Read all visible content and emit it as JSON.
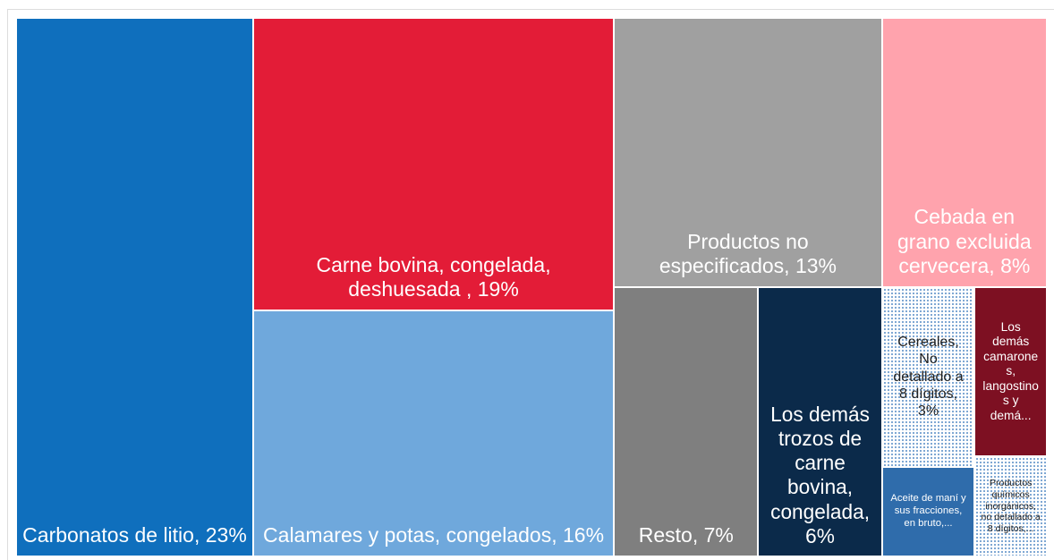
{
  "chart_data": {
    "type": "treemap",
    "items": [
      {
        "label": "Carbonatos de litio, 23%",
        "value": 23,
        "color": "#0f6fbd"
      },
      {
        "label": "Carne bovina, congelada, deshuesada , 19%",
        "value": 19,
        "color": "#e31c37"
      },
      {
        "label": "Calamares y potas, congelados, 16%",
        "value": 16,
        "color": "#6fa8dc"
      },
      {
        "label": "Productos no especificados, 13%",
        "value": 13,
        "color": "#a0a0a0"
      },
      {
        "label": "Cebada en grano excluida cervecera, 8%",
        "value": 8,
        "color": "#ffa3ad"
      },
      {
        "label": "Resto, 7%",
        "value": 7,
        "color": "#7f7f7f"
      },
      {
        "label": "Los demás trozos de carne bovina, congelada, 6%",
        "value": 6,
        "color": "#0b2a4a"
      },
      {
        "label": "Cereales, No detallado a 8 dígitos, 3%",
        "value": 3,
        "color": "#ffffff",
        "pattern": "dots"
      },
      {
        "label": "Aceite de maní y sus fracciones, en bruto,...",
        "value": 1.5,
        "color": "#2f6cab"
      },
      {
        "label": "Los demás camarones, langostinos y demá...",
        "value": 2.2,
        "color": "#7d1022"
      },
      {
        "label": "Productos químicos inorgánicos, no detallado a 8 dígitos,...",
        "value": 1.3,
        "color": "#ffffff",
        "pattern": "dots"
      }
    ]
  }
}
